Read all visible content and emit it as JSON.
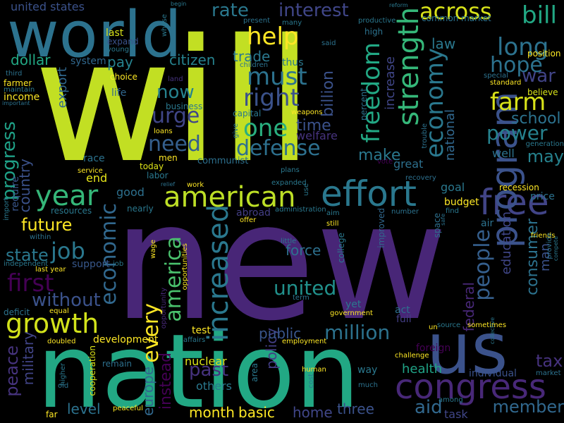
{
  "words": [
    {
      "text": "will",
      "color": "#c2df23"
    },
    {
      "text": "new",
      "color": "#482677"
    },
    {
      "text": "nation",
      "color": "#22a884"
    },
    {
      "text": "world",
      "color": "#2c728e"
    },
    {
      "text": "us",
      "color": "#3b528b"
    },
    {
      "text": "congress",
      "color": "#482878"
    },
    {
      "text": "effort",
      "color": "#2a788e"
    },
    {
      "text": "american",
      "color": "#bddf26"
    },
    {
      "text": "free",
      "color": "#414487"
    },
    {
      "text": "program",
      "color": "#3b528b"
    },
    {
      "text": "strength",
      "color": "#35b779"
    },
    {
      "text": "economy",
      "color": "#2a788e"
    },
    {
      "text": "freedom",
      "color": "#22a884"
    },
    {
      "text": "increased",
      "color": "#2a788e"
    },
    {
      "text": "growth",
      "color": "#d2e21b"
    },
    {
      "text": "year",
      "color": "#35b779"
    },
    {
      "text": "america",
      "color": "#4ac16d"
    },
    {
      "text": "economic",
      "color": "#31688e"
    },
    {
      "text": "people",
      "color": "#355f8d"
    },
    {
      "text": "must",
      "color": "#2c728e"
    },
    {
      "text": "right",
      "color": "#3b528b"
    },
    {
      "text": "one",
      "color": "#29af7f"
    },
    {
      "text": "defense",
      "color": "#2d708e"
    },
    {
      "text": "help",
      "color": "#fde725"
    },
    {
      "text": "bill",
      "color": "#22a884"
    },
    {
      "text": "long",
      "color": "#2c728e"
    },
    {
      "text": "hope",
      "color": "#2c728e"
    },
    {
      "text": "farm",
      "color": "#d8e219"
    },
    {
      "text": "power",
      "color": "#26828e"
    },
    {
      "text": "across",
      "color": "#d8e219"
    },
    {
      "text": "rate",
      "color": "#2a788e"
    },
    {
      "text": "interest",
      "color": "#404688"
    },
    {
      "text": "urge",
      "color": "#404688"
    },
    {
      "text": "need",
      "color": "#355f8d"
    },
    {
      "text": "now",
      "color": "#26828e"
    },
    {
      "text": "first",
      "color": "#440154"
    },
    {
      "text": "job",
      "color": "#2a788e"
    },
    {
      "text": "united",
      "color": "#21918c"
    },
    {
      "text": "million",
      "color": "#2c728e"
    },
    {
      "text": "every",
      "color": "#fde725"
    },
    {
      "text": "member",
      "color": "#31688e"
    },
    {
      "text": "aid",
      "color": "#31688e"
    },
    {
      "text": "progress",
      "color": "#1fa187"
    },
    {
      "text": "peace",
      "color": "#46337e"
    },
    {
      "text": "without",
      "color": "#3b528b"
    },
    {
      "text": "past",
      "color": "#46327e"
    },
    {
      "text": "future",
      "color": "#fde725"
    },
    {
      "text": "time",
      "color": "#3b528b"
    },
    {
      "text": "make",
      "color": "#2a788e"
    },
    {
      "text": "tax",
      "color": "#46327e"
    },
    {
      "text": "war",
      "color": "#414487"
    },
    {
      "text": "may",
      "color": "#26828e"
    },
    {
      "text": "policy",
      "color": "#433e85"
    },
    {
      "text": "public",
      "color": "#39568c"
    },
    {
      "text": "citizen",
      "color": "#26828e"
    },
    {
      "text": "pay",
      "color": "#26828e"
    },
    {
      "text": "trade",
      "color": "#2a788e"
    },
    {
      "text": "dollar",
      "color": "#22a884"
    },
    {
      "text": "law",
      "color": "#2a788e"
    },
    {
      "text": "national",
      "color": "#31688e"
    },
    {
      "text": "billion",
      "color": "#3b528b"
    },
    {
      "text": "increase",
      "color": "#404688"
    },
    {
      "text": "school",
      "color": "#2c728e"
    },
    {
      "text": "education",
      "color": "#404688"
    },
    {
      "text": "federal",
      "color": "#482878"
    },
    {
      "text": "consumer",
      "color": "#2c728e"
    },
    {
      "text": "state",
      "color": "#2a788e"
    },
    {
      "text": "country",
      "color": "#3b528b"
    },
    {
      "text": "military",
      "color": "#414487"
    },
    {
      "text": "force",
      "color": "#2d708e"
    },
    {
      "text": "europe",
      "color": "#31688e"
    },
    {
      "text": "instead",
      "color": "#440154"
    },
    {
      "text": "level",
      "color": "#2c728e"
    },
    {
      "text": "month",
      "color": "#fde725"
    },
    {
      "text": "basic",
      "color": "#fde725"
    },
    {
      "text": "home",
      "color": "#404688"
    },
    {
      "text": "three",
      "color": "#3b528b"
    },
    {
      "text": "task",
      "color": "#404688"
    },
    {
      "text": "health",
      "color": "#20a386"
    },
    {
      "text": "others",
      "color": "#2a788e"
    },
    {
      "text": "good",
      "color": "#2d708e"
    },
    {
      "text": "goal",
      "color": "#2a788e"
    },
    {
      "text": "budget",
      "color": "#fde725"
    },
    {
      "text": "man",
      "color": "#3b528b"
    },
    {
      "text": "well",
      "color": "#2c728e"
    },
    {
      "text": "end",
      "color": "#e5e419"
    },
    {
      "text": "price",
      "color": "#2c728e"
    },
    {
      "text": "recession",
      "color": "#fde725"
    },
    {
      "text": "united states",
      "color": "#3b528b"
    },
    {
      "text": "system",
      "color": "#31688e"
    },
    {
      "text": "export",
      "color": "#31688e"
    },
    {
      "text": "life",
      "color": "#31688e"
    },
    {
      "text": "last",
      "color": "#d8e219"
    },
    {
      "text": "expand",
      "color": "#3b528b"
    },
    {
      "text": "business",
      "color": "#2a788e"
    },
    {
      "text": "capital",
      "color": "#2a788e"
    },
    {
      "text": "race",
      "color": "#2c728e"
    },
    {
      "text": "men",
      "color": "#fde725"
    },
    {
      "text": "labor",
      "color": "#2a788e"
    },
    {
      "text": "today",
      "color": "#dde318"
    },
    {
      "text": "communist",
      "color": "#2d708e"
    },
    {
      "text": "great",
      "color": "#2d708e"
    },
    {
      "text": "require",
      "color": "#39568c"
    },
    {
      "text": "nearly",
      "color": "#2a788e"
    },
    {
      "text": "resources",
      "color": "#2a788e"
    },
    {
      "text": "abroad",
      "color": "#433e85"
    },
    {
      "text": "support",
      "color": "#38588c"
    },
    {
      "text": "test",
      "color": "#fde725"
    },
    {
      "text": "development",
      "color": "#fde725"
    },
    {
      "text": "nuclear",
      "color": "#dde318"
    },
    {
      "text": "foreign",
      "color": "#440154"
    },
    {
      "text": "individual",
      "color": "#3b528b"
    },
    {
      "text": "act",
      "color": "#2d708e"
    },
    {
      "text": "full",
      "color": "#433e85"
    },
    {
      "text": "way",
      "color": "#2a788e"
    },
    {
      "text": "yet",
      "color": "#2a788e"
    },
    {
      "text": "cooperation",
      "color": "#dde318"
    },
    {
      "text": "far",
      "color": "#fde725"
    },
    {
      "text": "remain",
      "color": "#2d708e"
    },
    {
      "text": "area",
      "color": "#2a788e"
    },
    {
      "text": "job",
      "color": "#2a788e"
    },
    {
      "text": "improved",
      "color": "#31688e"
    },
    {
      "text": "college",
      "color": "#2a788e"
    },
    {
      "text": "air",
      "color": "#2c728e"
    },
    {
      "text": "space",
      "color": "#2d708e"
    },
    {
      "text": "opportunities",
      "color": "#fde725"
    },
    {
      "text": "opportunity",
      "color": "#482878"
    },
    {
      "text": "wage",
      "color": "#fde725"
    },
    {
      "text": "believe",
      "color": "#d8e219"
    },
    {
      "text": "position",
      "color": "#fde725"
    },
    {
      "text": "common market",
      "color": "#2c728e"
    },
    {
      "text": "productive",
      "color": "#2a788e"
    },
    {
      "text": "high",
      "color": "#2c728e"
    },
    {
      "text": "thus",
      "color": "#2a788e"
    },
    {
      "text": "percent",
      "color": "#2c728e"
    },
    {
      "text": "standard",
      "color": "#fde725"
    },
    {
      "text": "generation",
      "color": "#2a788e"
    },
    {
      "text": "special",
      "color": "#2c728e"
    },
    {
      "text": "friends",
      "color": "#fde725"
    },
    {
      "text": "compete",
      "color": "#2a788e"
    },
    {
      "text": "provide",
      "color": "#2c728e"
    },
    {
      "text": "recovery",
      "color": "#2d708e"
    },
    {
      "text": "plans",
      "color": "#2a788e"
    },
    {
      "text": "vote",
      "color": "#440154"
    },
    {
      "text": "service",
      "color": "#fde725"
    },
    {
      "text": "loans",
      "color": "#fde725"
    },
    {
      "text": "weapons",
      "color": "#fde725"
    },
    {
      "text": "welfare",
      "color": "#46337e"
    },
    {
      "text": "give",
      "color": "#2a788e"
    },
    {
      "text": "children",
      "color": "#2c728e"
    },
    {
      "text": "choice",
      "color": "#fde725"
    },
    {
      "text": "land",
      "color": "#46337e"
    },
    {
      "text": "young",
      "color": "#2a788e"
    },
    {
      "text": "farmer",
      "color": "#fde725"
    },
    {
      "text": "maintain",
      "color": "#2a788e"
    },
    {
      "text": "third",
      "color": "#2c728e"
    },
    {
      "text": "income",
      "color": "#fde725"
    },
    {
      "text": "important",
      "color": "#2c728e"
    },
    {
      "text": "whose",
      "color": "#2a788e"
    },
    {
      "text": "begin",
      "color": "#2a788e"
    },
    {
      "text": "present",
      "color": "#2c728e"
    },
    {
      "text": "many",
      "color": "#2a788e"
    },
    {
      "text": "reform",
      "color": "#2a788e"
    },
    {
      "text": "said",
      "color": "#2c728e"
    },
    {
      "text": "last year",
      "color": "#fde725"
    },
    {
      "text": "independent",
      "color": "#2a788e"
    },
    {
      "text": "within",
      "color": "#2c728e"
    },
    {
      "text": "import",
      "color": "#2a788e"
    },
    {
      "text": "relief",
      "color": "#2c728e"
    },
    {
      "text": "work",
      "color": "#fde725"
    },
    {
      "text": "expanded",
      "color": "#2a788e"
    },
    {
      "text": "administration",
      "color": "#2a788e"
    },
    {
      "text": "number",
      "color": "#2c728e"
    },
    {
      "text": "find",
      "color": "#2a788e"
    },
    {
      "text": "safe",
      "color": "#2c728e"
    },
    {
      "text": "aim",
      "color": "#2a788e"
    },
    {
      "text": "offer",
      "color": "#fde725"
    },
    {
      "text": "still",
      "color": "#fde725"
    },
    {
      "text": "little",
      "color": "#2a788e"
    },
    {
      "text": "term",
      "color": "#2c728e"
    },
    {
      "text": "government",
      "color": "#fde725"
    },
    {
      "text": "source",
      "color": "#2a788e"
    },
    {
      "text": "sometimes",
      "color": "#fde725"
    },
    {
      "text": "un",
      "color": "#fde725"
    },
    {
      "text": "deficit",
      "color": "#2c728e"
    },
    {
      "text": "equal",
      "color": "#fde725"
    },
    {
      "text": "doubled",
      "color": "#fde725"
    },
    {
      "text": "affairs",
      "color": "#2a788e"
    },
    {
      "text": "employment",
      "color": "#fde725"
    },
    {
      "text": "challenge",
      "color": "#fde725"
    },
    {
      "text": "higher",
      "color": "#2a788e"
    },
    {
      "text": "old",
      "color": "#2c728e"
    },
    {
      "text": "human",
      "color": "#fde725"
    },
    {
      "text": "cost",
      "color": "#2a788e"
    },
    {
      "text": "much",
      "color": "#2c728e"
    },
    {
      "text": "peaceful",
      "color": "#fde725"
    },
    {
      "text": "among",
      "color": "#2a788e"
    },
    {
      "text": "market",
      "color": "#2c728e"
    },
    {
      "text": "collective",
      "color": "#2a788e"
    },
    {
      "text": "trouble",
      "color": "#2c728e"
    },
    {
      "text": "use",
      "color": "#2a788e"
    }
  ]
}
